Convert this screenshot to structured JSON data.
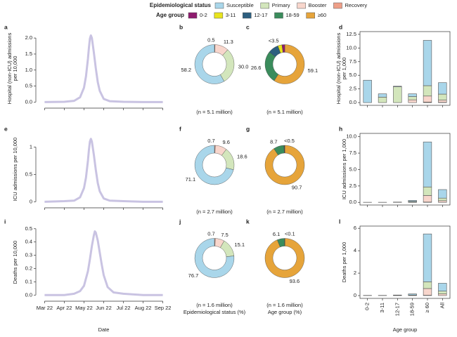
{
  "legend": {
    "groups": [
      {
        "title": "Epidemiological status",
        "items": [
          {
            "name": "Susceptible",
            "color": "#a9d6ea"
          },
          {
            "name": "Primary",
            "color": "#d3e6bc"
          },
          {
            "name": "Booster",
            "color": "#f8d6cc"
          },
          {
            "name": "Recovery",
            "color": "#ee9f88"
          }
        ]
      },
      {
        "title": "Age group",
        "items": [
          {
            "name": "0-2",
            "color": "#8e1b6e"
          },
          {
            "name": "3-11",
            "color": "#e8e41d"
          },
          {
            "name": "12-17",
            "color": "#2d5f7f"
          },
          {
            "name": "18-59",
            "color": "#3a8c5c"
          },
          {
            "name": "≥60",
            "color": "#e6a43a"
          }
        ]
      }
    ]
  },
  "chart_data": [
    {
      "type": "line",
      "panel": "a",
      "ylabel": [
        "Hospital (non-ICU) admissions",
        "per 10,000"
      ],
      "color": "#c9c3e2",
      "x": [
        3,
        4,
        4.5,
        4.8,
        5.0,
        5.1,
        5.2,
        5.25,
        5.3,
        5.35,
        5.4,
        5.5,
        5.6,
        5.7,
        5.8,
        6.0,
        6.3,
        7,
        8,
        9
      ],
      "values": [
        0,
        0.01,
        0.04,
        0.15,
        0.45,
        0.8,
        1.35,
        1.7,
        1.98,
        2.08,
        2.0,
        1.55,
        1.05,
        0.62,
        0.35,
        0.1,
        0.03,
        0.01,
        0,
        0
      ],
      "xlim": [
        2.7,
        9.3
      ],
      "xticks": [
        3,
        4,
        5,
        6,
        7,
        8,
        9
      ],
      "ylim": [
        -0.1,
        2.2
      ],
      "yticks": [
        {
          "value": 0,
          "label": "0.0"
        },
        0.5,
        {
          "value": 1,
          "label": "1.0"
        },
        1.5,
        {
          "value": 2,
          "label": "2.0"
        }
      ]
    },
    {
      "type": "donut",
      "panel": "b",
      "values": [
        58.2,
        30.0,
        11.3,
        0.5
      ],
      "value_labels": [
        "58.2",
        "30.0",
        "11.3",
        "0.5"
      ],
      "colors": [
        "#a9d6ea",
        "#d3e6bc",
        "#f8d6cc",
        "#ee9f88"
      ],
      "caption": "(n = 5.1 million)"
    },
    {
      "type": "donut",
      "panel": "c",
      "values": [
        2.3,
        3.4,
        8.6,
        26.6,
        59.1
      ],
      "value_labels": [
        null,
        "<3.5",
        null,
        "26.6",
        "59.1"
      ],
      "colors": [
        "#8e1b6e",
        "#e8e41d",
        "#2d5f7f",
        "#3a8c5c",
        "#e6a43a"
      ],
      "caption": "(n = 5.1 million)"
    },
    {
      "type": "stacked_bar",
      "panel": "d",
      "ylabel": [
        "Hospital (non-ICU) admissions",
        "per 1,000"
      ],
      "categories": [
        null,
        null,
        null,
        null,
        null,
        null
      ],
      "series": [
        {
          "color": "#a9d6ea",
          "values": [
            4.1,
            0.6,
            0.1,
            0.5,
            8.3,
            2.1
          ]
        },
        {
          "color": "#d3e6bc",
          "values": [
            0,
            1.0,
            2.9,
            0.6,
            1.9,
            1.1
          ]
        },
        {
          "color": "#f8d6cc",
          "values": [
            0,
            0,
            0,
            0.5,
            1.1,
            0.4
          ]
        },
        {
          "color": "#ee9f88",
          "values": [
            0,
            0,
            0,
            0,
            0.1,
            0.05
          ]
        }
      ],
      "ylim": [
        -0.5,
        13
      ],
      "yticks": [
        {
          "value": 0,
          "label": "0.0"
        },
        2.5,
        {
          "value": 5,
          "label": "5.0"
        },
        7.5,
        {
          "value": 10,
          "label": "10.0"
        },
        12.5
      ]
    },
    {
      "type": "line",
      "panel": "e",
      "ylabel": [
        "ICU admissions per 10,000"
      ],
      "color": "#c9c3e2",
      "x": [
        3,
        4,
        4.5,
        4.8,
        5.0,
        5.1,
        5.2,
        5.25,
        5.3,
        5.35,
        5.4,
        5.5,
        5.6,
        5.7,
        5.8,
        6.0,
        6.3,
        7,
        8,
        9
      ],
      "values": [
        0,
        0.01,
        0.02,
        0.08,
        0.25,
        0.44,
        0.75,
        0.95,
        1.1,
        1.15,
        1.1,
        0.86,
        0.58,
        0.34,
        0.19,
        0.06,
        0.02,
        0.01,
        0,
        0
      ],
      "xlim": [
        2.7,
        9.3
      ],
      "xticks": [
        3,
        4,
        5,
        6,
        7,
        8,
        9
      ],
      "ylim": [
        -0.06,
        1.25
      ],
      "yticks": [
        0,
        0.5,
        1
      ]
    },
    {
      "type": "donut",
      "panel": "f",
      "values": [
        71.1,
        18.6,
        9.6,
        0.7
      ],
      "value_labels": [
        "71.1",
        "18.6",
        "9.6",
        "0.7"
      ],
      "colors": [
        "#a9d6ea",
        "#d3e6bc",
        "#f8d6cc",
        "#ee9f88"
      ],
      "caption": "(n = 2.7 million)"
    },
    {
      "type": "donut",
      "panel": "g",
      "values": [
        0.1,
        0.1,
        0.4,
        8.7,
        90.7
      ],
      "value_labels": [
        null,
        null,
        "<0.5",
        "8.7",
        "90.7"
      ],
      "colors": [
        "#8e1b6e",
        "#e8e41d",
        "#2d5f7f",
        "#3a8c5c",
        "#e6a43a"
      ],
      "caption": "(n = 2.7 million)"
    },
    {
      "type": "stacked_bar",
      "panel": "h",
      "ylabel": [
        "ICU admissions per 1,000"
      ],
      "categories": [
        null,
        null,
        null,
        null,
        null,
        null
      ],
      "series": [
        {
          "color": "#a9d6ea",
          "values": [
            0.02,
            0.02,
            0.03,
            0.15,
            6.85,
            1.3
          ]
        },
        {
          "color": "#d3e6bc",
          "values": [
            0,
            0,
            0.02,
            0.1,
            1.3,
            0.4
          ]
        },
        {
          "color": "#f8d6cc",
          "values": [
            0,
            0,
            0,
            0.05,
            1.0,
            0.25
          ]
        },
        {
          "color": "#ee9f88",
          "values": [
            0,
            0,
            0,
            0,
            0.05,
            0
          ]
        }
      ],
      "ylim": [
        -0.4,
        10.5
      ],
      "yticks": [
        {
          "value": 0,
          "label": "0.0"
        },
        2.5,
        {
          "value": 5,
          "label": "5.0"
        },
        7.5,
        {
          "value": 10,
          "label": "10.0"
        }
      ]
    },
    {
      "type": "line",
      "panel": "i",
      "ylabel": [
        "Deaths per 10,000"
      ],
      "xlabel": "Date",
      "color": "#c9c3e2",
      "x": [
        3,
        4,
        4.5,
        4.8,
        5.0,
        5.2,
        5.3,
        5.4,
        5.5,
        5.55,
        5.6,
        5.7,
        5.8,
        5.9,
        6.0,
        6.2,
        6.5,
        7,
        8,
        9
      ],
      "values": [
        0,
        0,
        0.01,
        0.03,
        0.07,
        0.18,
        0.27,
        0.37,
        0.45,
        0.48,
        0.47,
        0.41,
        0.32,
        0.23,
        0.15,
        0.06,
        0.02,
        0.01,
        0,
        0
      ],
      "xlim": [
        2.7,
        9.3
      ],
      "xticks": [
        {
          "value": 3,
          "label": "Mar 22"
        },
        {
          "value": 4,
          "label": "Apr 22"
        },
        {
          "value": 5,
          "label": "May 22"
        },
        {
          "value": 6,
          "label": "Jun 22"
        },
        {
          "value": 7,
          "label": "Jul 22"
        },
        {
          "value": 8,
          "label": "Aug 22"
        },
        {
          "value": 9,
          "label": "Sep 22"
        }
      ],
      "ylim": [
        -0.025,
        0.52
      ],
      "yticks": [
        {
          "value": 0,
          "label": "0.0"
        },
        0.1,
        0.2,
        0.3,
        0.4,
        0.5
      ]
    },
    {
      "type": "donut",
      "panel": "j",
      "values": [
        76.7,
        15.1,
        7.5,
        0.7
      ],
      "value_labels": [
        "76.7",
        "15.1",
        "7.5",
        "0.7"
      ],
      "colors": [
        "#a9d6ea",
        "#d3e6bc",
        "#f8d6cc",
        "#ee9f88"
      ],
      "caption": "(n = 1.6 million)",
      "xlabel": "Epidemiological status (%)"
    },
    {
      "type": "donut",
      "panel": "k",
      "values": [
        0.02,
        0.03,
        0.05,
        6.1,
        93.6
      ],
      "value_labels": [
        null,
        null,
        "<0.1",
        "6.1",
        "93.6"
      ],
      "colors": [
        "#8e1b6e",
        "#e8e41d",
        "#2d5f7f",
        "#3a8c5c",
        "#e6a43a"
      ],
      "caption": "(n = 1.6 million)",
      "xlabel": "Age group (%)"
    },
    {
      "type": "stacked_bar",
      "panel": "l",
      "ylabel": [
        "Deaths per 1,000"
      ],
      "xlabel": "Age group",
      "categories": [
        "0-2",
        "3-11",
        "12-17",
        "18-59",
        "≥ 60",
        "All"
      ],
      "series": [
        {
          "color": "#a9d6ea",
          "values": [
            0.02,
            0.02,
            0.03,
            0.1,
            4.27,
            0.7
          ]
        },
        {
          "color": "#d3e6bc",
          "values": [
            0,
            0,
            0.02,
            0.03,
            0.6,
            0.25
          ]
        },
        {
          "color": "#f8d6cc",
          "values": [
            0,
            0,
            0,
            0.02,
            0.6,
            0.15
          ]
        },
        {
          "color": "#ee9f88",
          "values": [
            0,
            0,
            0,
            0,
            0.03,
            0
          ]
        }
      ],
      "ylim": [
        -0.25,
        6.2
      ],
      "yticks": [
        0,
        2,
        4,
        6
      ]
    }
  ]
}
